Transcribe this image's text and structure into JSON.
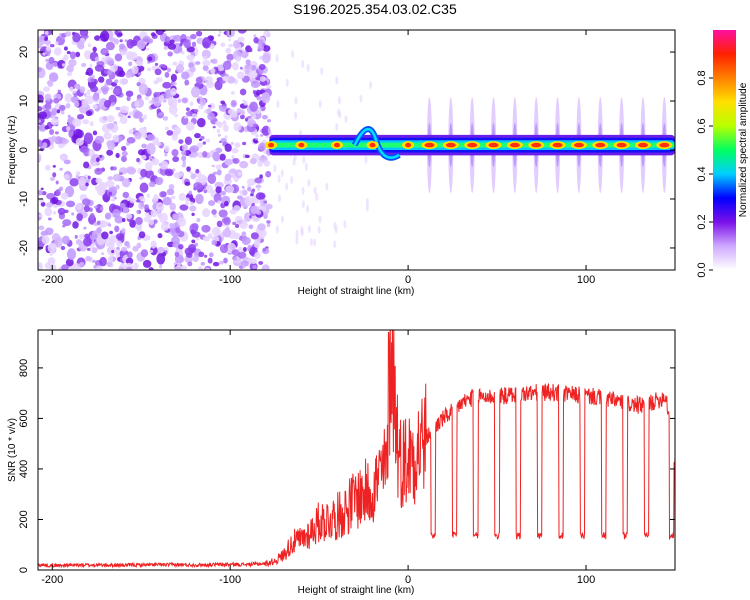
{
  "title": "S196.2025.354.03.02.C35",
  "chart_data": [
    {
      "type": "heatmap",
      "xlabel": "Height of straight line (km)",
      "ylabel": "Frequency (Hz)",
      "xlim": [
        -208,
        150
      ],
      "ylim": [
        -24.5,
        24.5
      ],
      "xticks": [
        -200,
        -100,
        0,
        100
      ],
      "yticks": [
        20,
        10,
        0,
        -10,
        -20
      ],
      "xtick_labels": [
        "-200",
        "-100",
        "0",
        "100"
      ],
      "ytick_labels": [
        "20",
        "10",
        "0",
        "-10",
        "-20"
      ],
      "noise_region_x": [
        -208,
        -78
      ],
      "signal_start_x": -78,
      "ridge_frequency_hz": 1,
      "pulse_centers_x": [
        -77,
        -60,
        -40,
        -20,
        0,
        12,
        24,
        36,
        48,
        60,
        72,
        84,
        96,
        108,
        120,
        132,
        144
      ],
      "colorbar": {
        "label": "Normalized spectral amplitude",
        "range": [
          0,
          1
        ],
        "ticks": [
          0.0,
          0.2,
          0.4,
          0.6,
          0.8
        ],
        "tick_labels": [
          "0.0",
          "0.2",
          "0.4",
          "0.6",
          "0.8"
        ],
        "colors": [
          "#ffffff",
          "#cfa8ff",
          "#7b10e8",
          "#0000ff",
          "#00cfff",
          "#00ff60",
          "#b8ff00",
          "#ffe000",
          "#ff8000",
          "#ff2000",
          "#ff10a0"
        ]
      }
    },
    {
      "type": "line",
      "xlabel": "Height of straight line (km)",
      "ylabel": "SNR (10 * v/v)",
      "xlim": [
        -208,
        150
      ],
      "ylim": [
        0,
        950
      ],
      "xticks": [
        -200,
        -100,
        0,
        100
      ],
      "yticks": [
        0,
        200,
        400,
        600,
        800
      ],
      "xtick_labels": [
        "-200",
        "-100",
        "0",
        "100"
      ],
      "ytick_labels": [
        "0",
        "200",
        "400",
        "600",
        "800"
      ],
      "color": "#ee2222",
      "series": [
        {
          "name": "SNR",
          "x": [
            -208,
            -200,
            -180,
            -160,
            -140,
            -120,
            -100,
            -90,
            -80,
            -75,
            -70,
            -65,
            -60,
            -55,
            -50,
            -45,
            -40,
            -35,
            -30,
            -25,
            -20,
            -15,
            -11,
            -10,
            -5,
            0,
            5,
            10,
            15,
            20,
            25,
            30,
            35,
            40,
            45,
            50,
            55,
            60,
            70,
            80,
            90,
            100,
            110,
            120,
            130,
            140,
            145,
            150
          ],
          "values": [
            20,
            18,
            20,
            19,
            21,
            20,
            22,
            22,
            25,
            35,
            60,
            110,
            120,
            150,
            190,
            200,
            210,
            240,
            280,
            300,
            320,
            380,
            420,
            940,
            430,
            440,
            480,
            520,
            570,
            600,
            630,
            660,
            680,
            690,
            685,
            690,
            690,
            695,
            700,
            705,
            695,
            690,
            680,
            665,
            650,
            670,
            690,
            420
          ],
          "dips_x": [
            14,
            26,
            38,
            50,
            62,
            74,
            86,
            98,
            110,
            122,
            134,
            148
          ],
          "dip_value": 120
        }
      ]
    }
  ]
}
